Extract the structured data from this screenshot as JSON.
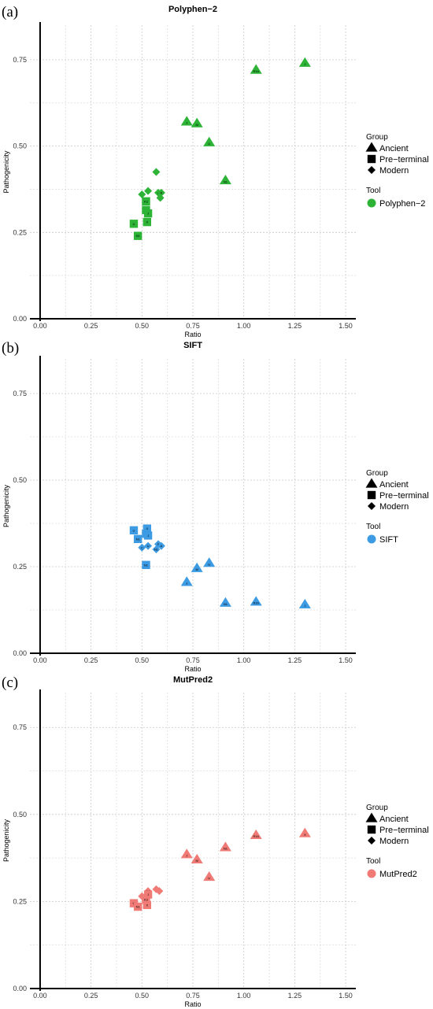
{
  "chart_data": [
    {
      "type": "scatter",
      "panel": "(a)",
      "title": "Polyphen−2",
      "xlabel": "Ratio",
      "ylabel": "Pathogenicity",
      "xlim": [
        -0.05,
        1.55
      ],
      "ylim": [
        0,
        0.85
      ],
      "xticks": [
        "0.00",
        "0.25",
        "0.50",
        "0.75",
        "1.00",
        "1.25",
        "1.50"
      ],
      "yticks": [
        "0.00",
        "0.25",
        "0.50",
        "0.75"
      ],
      "grid": true,
      "legend_placement": "right",
      "legend": {
        "group_title": "Group",
        "groups": [
          "Ancient",
          "Pre−terminal",
          "Modern"
        ],
        "tool_title": "Tool",
        "tool": "Polyphen−2"
      },
      "color": "#2db336",
      "points": [
        {
          "x": 1.3,
          "y": 0.74,
          "group": "Ancient",
          "label": "J"
        },
        {
          "x": 1.06,
          "y": 0.72,
          "group": "Ancient",
          "label": "R1b"
        },
        {
          "x": 0.72,
          "y": 0.57,
          "group": "Ancient",
          "label": "J"
        },
        {
          "x": 0.77,
          "y": 0.565,
          "group": "Ancient",
          "label": "M"
        },
        {
          "x": 0.83,
          "y": 0.51,
          "group": "Ancient",
          "label": "U"
        },
        {
          "x": 0.91,
          "y": 0.4,
          "group": "Ancient",
          "label": "N1"
        },
        {
          "x": 0.57,
          "y": 0.425,
          "group": "Modern",
          "label": ""
        },
        {
          "x": 0.53,
          "y": 0.37,
          "group": "Modern",
          "label": ""
        },
        {
          "x": 0.5,
          "y": 0.36,
          "group": "Modern",
          "label": ""
        },
        {
          "x": 0.58,
          "y": 0.365,
          "group": "Modern",
          "label": "F"
        },
        {
          "x": 0.595,
          "y": 0.365,
          "group": "Modern",
          "label": "R"
        },
        {
          "x": 0.59,
          "y": 0.35,
          "group": "Modern",
          "label": ""
        },
        {
          "x": 0.52,
          "y": 0.34,
          "group": "Pre−terminal",
          "label": "K2"
        },
        {
          "x": 0.52,
          "y": 0.315,
          "group": "Pre−terminal",
          "label": "N1"
        },
        {
          "x": 0.53,
          "y": 0.305,
          "group": "Pre−terminal",
          "label": "J"
        },
        {
          "x": 0.525,
          "y": 0.28,
          "group": "Pre−terminal",
          "label": "X"
        },
        {
          "x": 0.46,
          "y": 0.275,
          "group": "Pre−terminal",
          "label": "U"
        },
        {
          "x": 0.48,
          "y": 0.24,
          "group": "Pre−terminal",
          "label": "N1"
        }
      ]
    },
    {
      "type": "scatter",
      "panel": "(b)",
      "title": "SIFT",
      "xlabel": "Ratio",
      "ylabel": "Pathogenicity",
      "xlim": [
        -0.05,
        1.55
      ],
      "ylim": [
        0,
        0.85
      ],
      "xticks": [
        "0.00",
        "0.25",
        "0.50",
        "0.75",
        "1.00",
        "1.25",
        "1.50"
      ],
      "yticks": [
        "0.00",
        "0.25",
        "0.50",
        "0.75"
      ],
      "grid": true,
      "legend_placement": "right",
      "legend": {
        "group_title": "Group",
        "groups": [
          "Ancient",
          "Pre−terminal",
          "Modern"
        ],
        "tool_title": "Tool",
        "tool": "SIFT"
      },
      "color": "#3d9be3",
      "points": [
        {
          "x": 0.46,
          "y": 0.355,
          "group": "Pre−terminal",
          "label": "U"
        },
        {
          "x": 0.525,
          "y": 0.36,
          "group": "Pre−terminal",
          "label": "X"
        },
        {
          "x": 0.52,
          "y": 0.345,
          "group": "Pre−terminal",
          "label": "K2"
        },
        {
          "x": 0.53,
          "y": 0.34,
          "group": "Pre−terminal",
          "label": "J"
        },
        {
          "x": 0.48,
          "y": 0.33,
          "group": "Pre−terminal",
          "label": "N1"
        },
        {
          "x": 0.5,
          "y": 0.305,
          "group": "Modern",
          "label": "C"
        },
        {
          "x": 0.53,
          "y": 0.31,
          "group": "Modern",
          "label": "U"
        },
        {
          "x": 0.58,
          "y": 0.315,
          "group": "Modern",
          "label": "F"
        },
        {
          "x": 0.595,
          "y": 0.31,
          "group": "Modern",
          "label": "A"
        },
        {
          "x": 0.57,
          "y": 0.3,
          "group": "Modern",
          "label": "N1"
        },
        {
          "x": 0.52,
          "y": 0.255,
          "group": "Pre−terminal",
          "label": "N1"
        },
        {
          "x": 0.83,
          "y": 0.26,
          "group": "Ancient",
          "label": "U"
        },
        {
          "x": 0.77,
          "y": 0.245,
          "group": "Ancient",
          "label": "M"
        },
        {
          "x": 0.72,
          "y": 0.205,
          "group": "Ancient",
          "label": "J"
        },
        {
          "x": 0.91,
          "y": 0.145,
          "group": "Ancient",
          "label": "N1"
        },
        {
          "x": 1.06,
          "y": 0.148,
          "group": "Ancient",
          "label": "R1b"
        },
        {
          "x": 1.3,
          "y": 0.14,
          "group": "Ancient",
          "label": "J"
        }
      ]
    },
    {
      "type": "scatter",
      "panel": "(c)",
      "title": "MutPred2",
      "xlabel": "Ratio",
      "ylabel": "Pathogenicity",
      "xlim": [
        -0.05,
        1.55
      ],
      "ylim": [
        0,
        0.85
      ],
      "xticks": [
        "0.00",
        "0.25",
        "0.50",
        "0.75",
        "1.00",
        "1.25",
        "1.50"
      ],
      "yticks": [
        "0.00",
        "0.25",
        "0.50",
        "0.75"
      ],
      "grid": true,
      "legend_placement": "right",
      "legend": {
        "group_title": "Group",
        "groups": [
          "Ancient",
          "Pre−terminal",
          "Modern"
        ],
        "tool_title": "Tool",
        "tool": "MutPred2"
      },
      "color": "#f07a75",
      "points": [
        {
          "x": 1.3,
          "y": 0.445,
          "group": "Ancient",
          "label": "X"
        },
        {
          "x": 1.06,
          "y": 0.44,
          "group": "Ancient",
          "label": "R1b"
        },
        {
          "x": 0.91,
          "y": 0.405,
          "group": "Ancient",
          "label": "N1"
        },
        {
          "x": 0.72,
          "y": 0.385,
          "group": "Ancient",
          "label": "J"
        },
        {
          "x": 0.77,
          "y": 0.37,
          "group": "Ancient",
          "label": "M"
        },
        {
          "x": 0.83,
          "y": 0.32,
          "group": "Ancient",
          "label": "U"
        },
        {
          "x": 0.57,
          "y": 0.285,
          "group": "Modern",
          "label": ""
        },
        {
          "x": 0.585,
          "y": 0.28,
          "group": "Modern",
          "label": ""
        },
        {
          "x": 0.53,
          "y": 0.28,
          "group": "Modern",
          "label": "N1"
        },
        {
          "x": 0.5,
          "y": 0.265,
          "group": "Modern",
          "label": ""
        },
        {
          "x": 0.52,
          "y": 0.255,
          "group": "Pre−terminal",
          "label": "K2"
        },
        {
          "x": 0.53,
          "y": 0.27,
          "group": "Pre−terminal",
          "label": "J"
        },
        {
          "x": 0.46,
          "y": 0.245,
          "group": "Pre−terminal",
          "label": "U"
        },
        {
          "x": 0.525,
          "y": 0.24,
          "group": "Pre−terminal",
          "label": "X"
        },
        {
          "x": 0.48,
          "y": 0.235,
          "group": "Pre−terminal",
          "label": "N1"
        }
      ]
    }
  ]
}
